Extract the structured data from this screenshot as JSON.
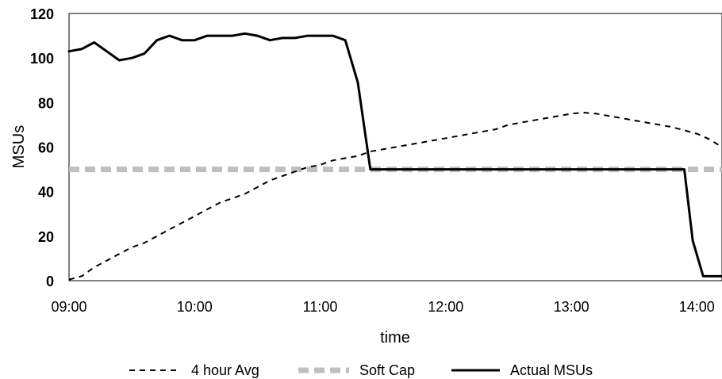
{
  "chart_data": {
    "type": "line",
    "xlabel": "time",
    "ylabel": "MSUs",
    "xlim": [
      "09:00",
      "14:12"
    ],
    "ylim": [
      0,
      120
    ],
    "x_ticks": [
      "09:00",
      "10:00",
      "11:00",
      "12:00",
      "13:00",
      "14:00"
    ],
    "y_ticks": [
      "0",
      "20",
      "40",
      "60",
      "80",
      "100",
      "120"
    ],
    "grid": false,
    "legend_position": "bottom",
    "series": [
      {
        "name": "4 hour Avg",
        "style": "dashed",
        "color": "#000000",
        "points": [
          [
            "09:00",
            0.5
          ],
          [
            "09:06",
            2
          ],
          [
            "09:12",
            6
          ],
          [
            "09:18",
            9
          ],
          [
            "09:24",
            12
          ],
          [
            "09:30",
            15
          ],
          [
            "09:36",
            17
          ],
          [
            "09:42",
            20
          ],
          [
            "09:48",
            23
          ],
          [
            "09:54",
            26
          ],
          [
            "10:00",
            29
          ],
          [
            "10:06",
            32
          ],
          [
            "10:12",
            35
          ],
          [
            "10:18",
            37
          ],
          [
            "10:24",
            39
          ],
          [
            "10:30",
            42
          ],
          [
            "10:36",
            45
          ],
          [
            "10:42",
            47
          ],
          [
            "10:48",
            49
          ],
          [
            "10:54",
            51
          ],
          [
            "11:00",
            52
          ],
          [
            "11:06",
            54
          ],
          [
            "11:12",
            55
          ],
          [
            "11:18",
            56
          ],
          [
            "11:24",
            58
          ],
          [
            "11:30",
            59
          ],
          [
            "11:36",
            60
          ],
          [
            "11:42",
            61
          ],
          [
            "11:48",
            62
          ],
          [
            "11:54",
            63
          ],
          [
            "12:00",
            64
          ],
          [
            "12:06",
            65
          ],
          [
            "12:12",
            66
          ],
          [
            "12:18",
            67
          ],
          [
            "12:24",
            68
          ],
          [
            "12:30",
            70
          ],
          [
            "12:36",
            71
          ],
          [
            "12:42",
            72
          ],
          [
            "12:48",
            73
          ],
          [
            "12:54",
            74
          ],
          [
            "13:00",
            75
          ],
          [
            "13:06",
            75.5
          ],
          [
            "13:12",
            75
          ],
          [
            "13:18",
            74
          ],
          [
            "13:24",
            73
          ],
          [
            "13:30",
            72
          ],
          [
            "13:36",
            71
          ],
          [
            "13:42",
            70
          ],
          [
            "13:48",
            69
          ],
          [
            "13:54",
            67.5
          ],
          [
            "14:00",
            66
          ],
          [
            "14:06",
            63.5
          ],
          [
            "14:12",
            60
          ]
        ]
      },
      {
        "name": "Soft Cap",
        "style": "dashed-thick",
        "color": "#bfbfbf",
        "points": [
          [
            "09:00",
            50
          ],
          [
            "14:12",
            50
          ]
        ]
      },
      {
        "name": "Actual MSUs",
        "style": "solid",
        "color": "#000000",
        "points": [
          [
            "09:00",
            103
          ],
          [
            "09:06",
            104
          ],
          [
            "09:12",
            107
          ],
          [
            "09:18",
            103
          ],
          [
            "09:24",
            99
          ],
          [
            "09:30",
            100
          ],
          [
            "09:36",
            102
          ],
          [
            "09:42",
            108
          ],
          [
            "09:48",
            110
          ],
          [
            "09:54",
            108
          ],
          [
            "10:00",
            108
          ],
          [
            "10:06",
            110
          ],
          [
            "10:12",
            110
          ],
          [
            "10:18",
            110
          ],
          [
            "10:24",
            111
          ],
          [
            "10:30",
            110
          ],
          [
            "10:36",
            108
          ],
          [
            "10:42",
            109
          ],
          [
            "10:48",
            109
          ],
          [
            "10:54",
            110
          ],
          [
            "11:00",
            110
          ],
          [
            "11:06",
            110
          ],
          [
            "11:12",
            108
          ],
          [
            "11:18",
            89
          ],
          [
            "11:24",
            50
          ],
          [
            "11:30",
            50
          ],
          [
            "12:00",
            50
          ],
          [
            "12:30",
            50
          ],
          [
            "13:00",
            50
          ],
          [
            "13:30",
            50
          ],
          [
            "13:54",
            50
          ],
          [
            "13:58",
            18
          ],
          [
            "14:03",
            2
          ],
          [
            "14:12",
            2
          ]
        ]
      }
    ]
  }
}
